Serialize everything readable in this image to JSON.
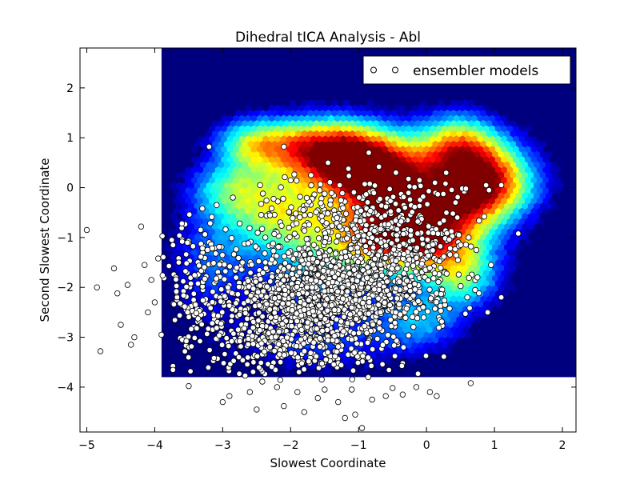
{
  "chart_data": {
    "type": "scatter",
    "title": "Dihedral tICA Analysis - Abl",
    "xlabel": "Slowest Coordinate",
    "ylabel": "Second Slowest Coordinate",
    "xlim": [
      -5.1,
      2.2
    ],
    "ylim": [
      -4.9,
      2.8
    ],
    "x_ticks": [
      -5,
      -4,
      -3,
      -2,
      -1,
      0,
      1,
      2
    ],
    "y_ticks": [
      -4,
      -3,
      -2,
      -1,
      0,
      1,
      2
    ],
    "x_tick_labels": [
      "−5",
      "−4",
      "−3",
      "−2",
      "−1",
      "0",
      "1",
      "2"
    ],
    "y_tick_labels": [
      "−4",
      "−3",
      "−2",
      "−1",
      "0",
      "1",
      "2"
    ],
    "legend": {
      "position": "top-right",
      "entries": [
        "ensembler models"
      ]
    },
    "background_layer": {
      "kind": "hexbin-density",
      "colormap": "jet",
      "x_range": [
        -3.9,
        2.2
      ],
      "y_range": [
        -3.8,
        2.8
      ],
      "empty_color": "#00007f",
      "density_peaks": [
        {
          "x": 0.8,
          "y": 0.1,
          "level": 1.0
        },
        {
          "x": -1.0,
          "y": 0.6,
          "level": 0.85
        },
        {
          "x": -0.5,
          "y": -0.9,
          "level": 0.7
        },
        {
          "x": -1.8,
          "y": 0.8,
          "level": 0.55
        },
        {
          "x": -2.6,
          "y": 0.9,
          "level": 0.4
        }
      ]
    },
    "series": [
      {
        "name": "ensembler models",
        "marker": "circle",
        "face_color": "#ffffff",
        "edge_color": "#000000",
        "points": [
          [
            -5.0,
            -0.85
          ],
          [
            -4.85,
            -2.0
          ],
          [
            -4.8,
            -3.28
          ],
          [
            -4.6,
            -1.62
          ],
          [
            -4.55,
            -2.12
          ],
          [
            -4.5,
            -2.75
          ],
          [
            -4.4,
            -1.95
          ],
          [
            -4.35,
            -3.15
          ],
          [
            -4.3,
            -3.0
          ],
          [
            -4.2,
            -0.78
          ],
          [
            -4.15,
            -1.55
          ],
          [
            -4.1,
            -2.5
          ],
          [
            -4.05,
            -1.85
          ],
          [
            -4.0,
            -2.3
          ],
          [
            -3.95,
            -1.42
          ],
          [
            -3.9,
            -2.95
          ],
          [
            -3.5,
            -3.98
          ],
          [
            -3.2,
            0.82
          ],
          [
            -3.0,
            -4.3
          ],
          [
            -2.9,
            -4.18
          ],
          [
            -2.6,
            -4.1
          ],
          [
            -2.5,
            -4.45
          ],
          [
            -2.2,
            -4.0
          ],
          [
            -2.1,
            -4.38
          ],
          [
            -1.9,
            -4.1
          ],
          [
            -1.8,
            -4.5
          ],
          [
            -1.6,
            -4.22
          ],
          [
            -1.5,
            -4.05
          ],
          [
            -1.3,
            -4.3
          ],
          [
            -1.2,
            -4.62
          ],
          [
            -1.1,
            -4.05
          ],
          [
            -1.05,
            -4.55
          ],
          [
            -0.95,
            -4.82
          ],
          [
            -0.8,
            -4.25
          ],
          [
            -0.6,
            -4.18
          ],
          [
            -0.5,
            -4.02
          ],
          [
            -0.35,
            -4.15
          ],
          [
            -0.15,
            -4.0
          ],
          [
            0.05,
            -4.1
          ],
          [
            0.15,
            -4.18
          ],
          [
            0.65,
            -3.92
          ],
          [
            -0.85,
            0.7
          ],
          [
            -1.15,
            0.38
          ],
          [
            -2.1,
            0.82
          ],
          [
            -1.45,
            0.5
          ],
          [
            0.28,
            0.08
          ],
          [
            0.58,
            -0.02
          ],
          [
            0.92,
            -0.05
          ],
          [
            1.1,
            0.05
          ],
          [
            0.62,
            -1.0
          ],
          [
            0.85,
            -0.58
          ],
          [
            1.35,
            -0.92
          ],
          [
            0.95,
            -1.55
          ],
          [
            0.75,
            -1.8
          ],
          [
            0.9,
            -2.5
          ],
          [
            0.6,
            -2.2
          ],
          [
            1.1,
            -2.2
          ],
          [
            -0.05,
            -0.18
          ],
          [
            -0.45,
            0.3
          ],
          [
            -0.7,
            0.42
          ],
          [
            -1.7,
            0.25
          ],
          [
            -2.0,
            0.15
          ],
          [
            -2.45,
            0.05
          ],
          [
            -2.85,
            -0.2
          ],
          [
            -2.75,
            -0.72
          ],
          [
            -3.3,
            -0.42
          ],
          [
            -3.6,
            -0.72
          ],
          [
            -3.75,
            -1.05
          ]
        ],
        "dense_cluster": {
          "description": "about 2000 overlapping markers",
          "core": {
            "x": -1.5,
            "y": -2.2
          },
          "x_extent": [
            -3.9,
            0.9
          ],
          "y_extent": [
            -3.9,
            0.3
          ]
        }
      }
    ]
  }
}
